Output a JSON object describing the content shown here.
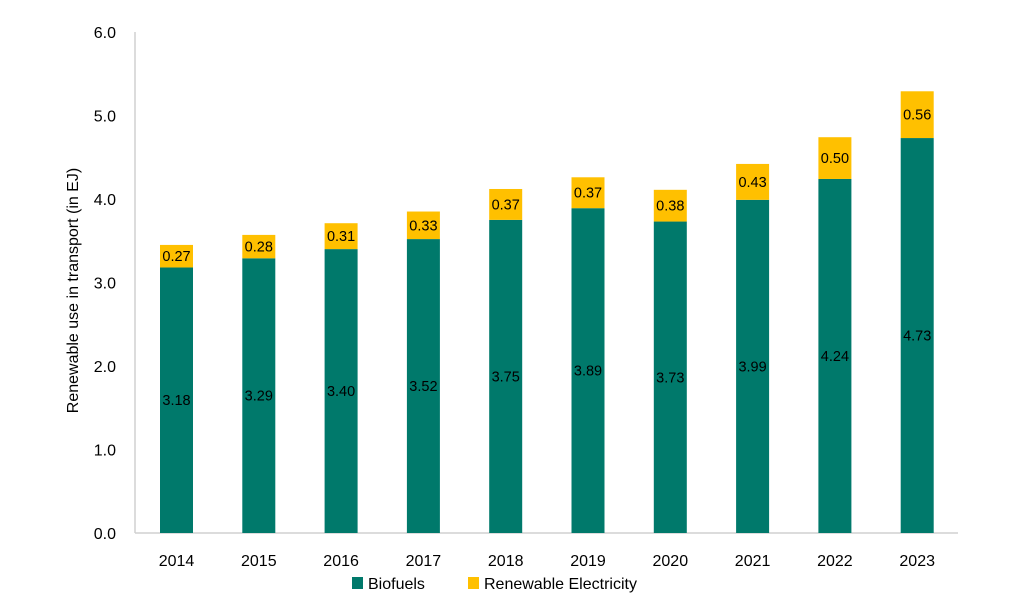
{
  "chart_data": {
    "type": "bar",
    "stacked": true,
    "title": "",
    "xlabel": "",
    "ylabel": "Renewable use in transport (in EJ)",
    "ylim": [
      0,
      6
    ],
    "yticks": [
      "0.0",
      "1.0",
      "2.0",
      "3.0",
      "4.0",
      "5.0",
      "6.0"
    ],
    "grid": false,
    "legend_position": "bottom",
    "categories": [
      "2014",
      "2015",
      "2016",
      "2017",
      "2018",
      "2019",
      "2020",
      "2021",
      "2022",
      "2023"
    ],
    "series": [
      {
        "name": "Biofuels",
        "color": "#00796B",
        "values": [
          3.18,
          3.29,
          3.4,
          3.52,
          3.75,
          3.89,
          3.73,
          3.99,
          4.24,
          4.73
        ],
        "labels": [
          "3.18",
          "3.29",
          "3.40",
          "3.52",
          "3.75",
          "3.89",
          "3.73",
          "3.99",
          "4.24",
          "4.73"
        ]
      },
      {
        "name": "Renewable Electricity",
        "color": "#FFC000",
        "values": [
          0.27,
          0.28,
          0.31,
          0.33,
          0.37,
          0.37,
          0.38,
          0.43,
          0.5,
          0.56
        ],
        "labels": [
          "0.27",
          "0.28",
          "0.31",
          "0.33",
          "0.37",
          "0.37",
          "0.38",
          "0.43",
          "0.50",
          "0.56"
        ]
      }
    ]
  },
  "legend": {
    "items": [
      {
        "label": "Biofuels",
        "color": "#00796B"
      },
      {
        "label": "Renewable Electricity",
        "color": "#FFC000"
      }
    ]
  },
  "axis": {
    "color": "#D0D0D0"
  }
}
